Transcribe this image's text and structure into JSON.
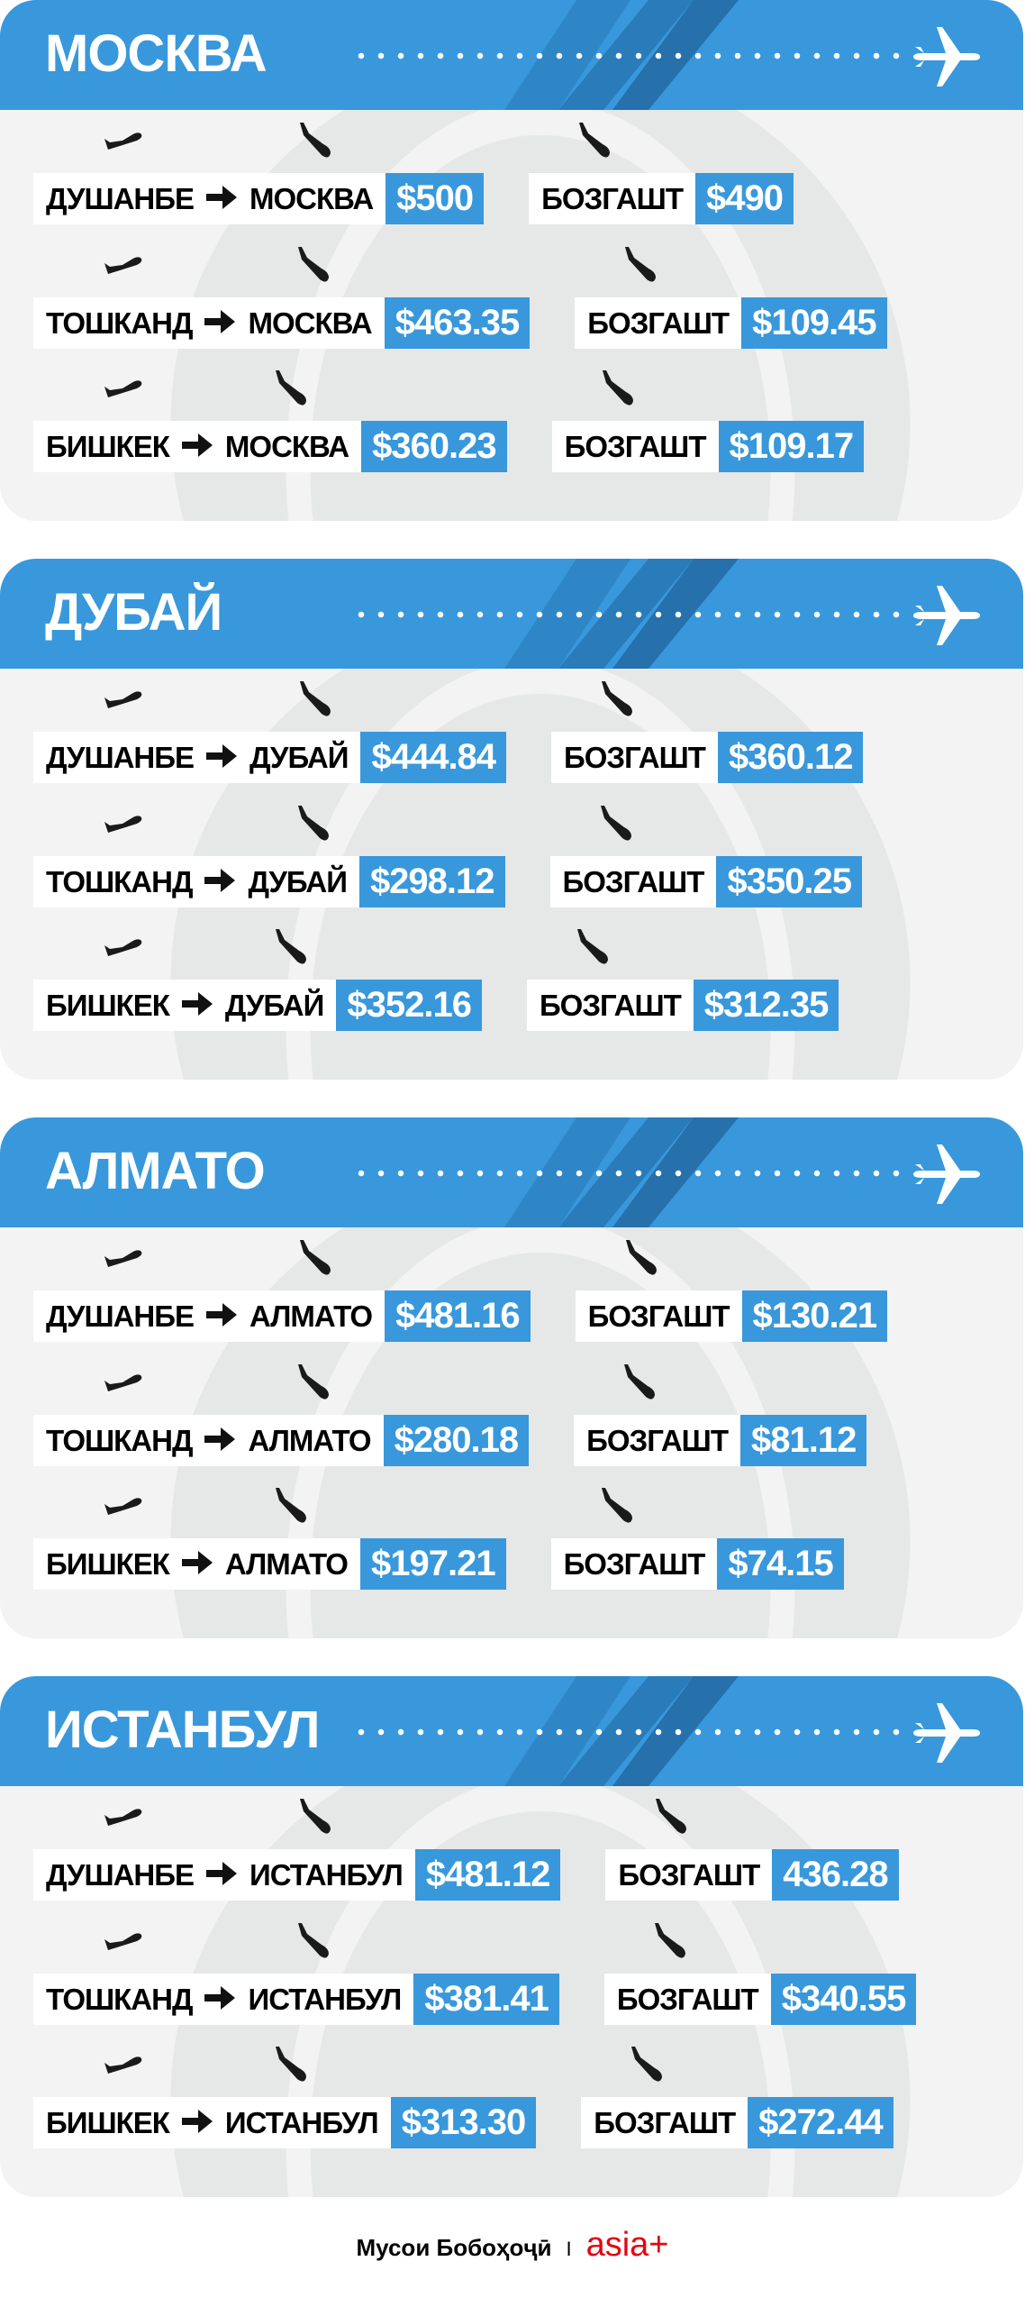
{
  "colors": {
    "accent": "#3898db",
    "card_bg": "#f3f3f3",
    "brand": "#e30613"
  },
  "icons": {
    "header": "airplane-icon",
    "takeoff": "plane-takeoff-icon",
    "landing": "plane-landing-icon",
    "arrow": "arrow-right-icon"
  },
  "cities": [
    {
      "title": "МОСКВА",
      "routes": [
        {
          "from": "ДУШАНБЕ",
          "to": "МОСКВА",
          "price": "$500",
          "return_label": "БОЗГАШТ",
          "return_price": "$490"
        },
        {
          "from": "ТОШКАНД",
          "to": "МОСКВА",
          "price": "$463.35",
          "return_label": "БОЗГАШТ",
          "return_price": "$109.45"
        },
        {
          "from": "БИШКЕК",
          "to": "МОСКВА",
          "price": "$360.23",
          "return_label": "БОЗГАШТ",
          "return_price": "$109.17"
        }
      ]
    },
    {
      "title": "ДУБАЙ",
      "routes": [
        {
          "from": "ДУШАНБЕ",
          "to": "ДУБАЙ",
          "price": "$444.84",
          "return_label": "БОЗГАШТ",
          "return_price": "$360.12"
        },
        {
          "from": "ТОШКАНД",
          "to": "ДУБАЙ",
          "price": "$298.12",
          "return_label": "БОЗГАШТ",
          "return_price": "$350.25"
        },
        {
          "from": "БИШКЕК",
          "to": "ДУБАЙ",
          "price": "$352.16",
          "return_label": "БОЗГАШТ",
          "return_price": "$312.35"
        }
      ]
    },
    {
      "title": "АЛМАТО",
      "routes": [
        {
          "from": "ДУШАНБЕ",
          "to": "АЛМАТО",
          "price": "$481.16",
          "return_label": "БОЗГАШТ",
          "return_price": "$130.21"
        },
        {
          "from": "ТОШКАНД",
          "to": "АЛМАТО",
          "price": "$280.18",
          "return_label": "БОЗГАШТ",
          "return_price": "$81.12"
        },
        {
          "from": "БИШКЕК",
          "to": "АЛМАТО",
          "price": "$197.21",
          "return_label": "БОЗГАШТ",
          "return_price": "$74.15"
        }
      ]
    },
    {
      "title": "ИСТАНБУЛ",
      "routes": [
        {
          "from": "ДУШАНБЕ",
          "to": "ИСТАНБУЛ",
          "price": "$481.12",
          "return_label": "БОЗГАШТ",
          "return_price": "436.28"
        },
        {
          "from": "ТОШКАНД",
          "to": "ИСТАНБУЛ",
          "price": "$381.41",
          "return_label": "БОЗГАШТ",
          "return_price": "$340.55"
        },
        {
          "from": "БИШКЕК",
          "to": "ИСТАНБУЛ",
          "price": "$313.30",
          "return_label": "БОЗГАШТ",
          "return_price": "$272.44"
        }
      ]
    }
  ],
  "footer": {
    "author": "Мусои Бобоҳоҷӣ",
    "separator": "I",
    "brand": "asia+"
  }
}
